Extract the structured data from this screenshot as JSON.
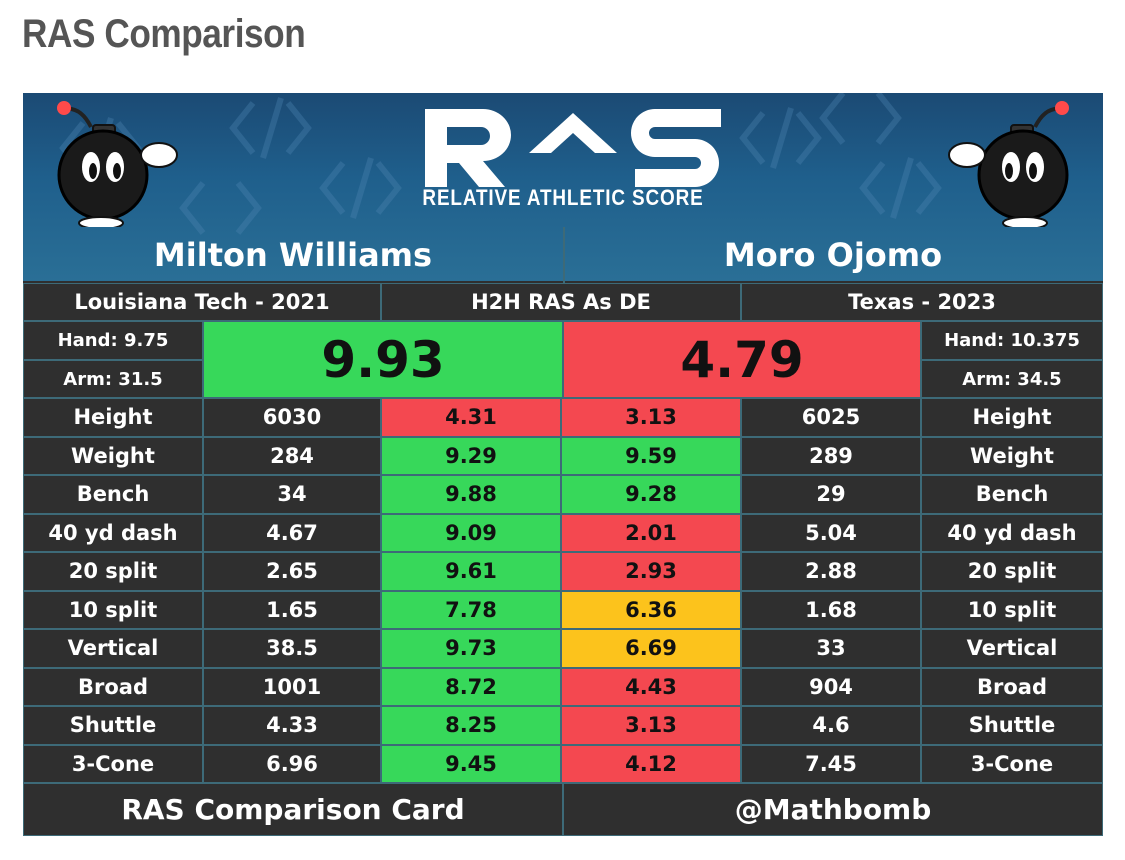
{
  "page_title": "RAS Comparison",
  "banner": {
    "logo_text": "RAS",
    "logo_subtitle": "RELATIVE ATHLETIC SCORE"
  },
  "players": {
    "left": {
      "name": "Milton Williams",
      "school_year": "Louisiana Tech - 2021",
      "hand": "Hand: 9.75",
      "arm": "Arm: 31.5",
      "ras": "9.93"
    },
    "right": {
      "name": "Moro Ojomo",
      "school_year": "Texas - 2023",
      "hand": "Hand: 10.375",
      "arm": "Arm: 34.5",
      "ras": "4.79"
    }
  },
  "comparison_label": "H2H RAS As DE",
  "metrics": [
    {
      "label": "Height",
      "left_value": "6030",
      "left_score": "4.31",
      "right_score": "3.13",
      "right_value": "6025"
    },
    {
      "label": "Weight",
      "left_value": "284",
      "left_score": "9.29",
      "right_score": "9.59",
      "right_value": "289"
    },
    {
      "label": "Bench",
      "left_value": "34",
      "left_score": "9.88",
      "right_score": "9.28",
      "right_value": "29"
    },
    {
      "label": "40 yd dash",
      "left_value": "4.67",
      "left_score": "9.09",
      "right_score": "2.01",
      "right_value": "5.04"
    },
    {
      "label": "20 split",
      "left_value": "2.65",
      "left_score": "9.61",
      "right_score": "2.93",
      "right_value": "2.88"
    },
    {
      "label": "10 split",
      "left_value": "1.65",
      "left_score": "7.78",
      "right_score": "6.36",
      "right_value": "1.68"
    },
    {
      "label": "Vertical",
      "left_value": "38.5",
      "left_score": "9.73",
      "right_score": "6.69",
      "right_value": "33"
    },
    {
      "label": "Broad",
      "left_value": "1001",
      "left_score": "8.72",
      "right_score": "4.43",
      "right_value": "904"
    },
    {
      "label": "Shuttle",
      "left_value": "4.33",
      "left_score": "8.25",
      "right_score": "3.13",
      "right_value": "4.6"
    },
    {
      "label": "3-Cone",
      "left_value": "6.96",
      "left_score": "9.45",
      "right_score": "4.12",
      "right_value": "7.45"
    }
  ],
  "footer": {
    "left": "RAS Comparison Card",
    "right": "@Mathbomb"
  },
  "colors": {
    "high": "#37d85a",
    "mid": "#fcc31c",
    "low": "#f44850",
    "card_bg": "#2f2f2f",
    "grid": "#3d6a78"
  }
}
